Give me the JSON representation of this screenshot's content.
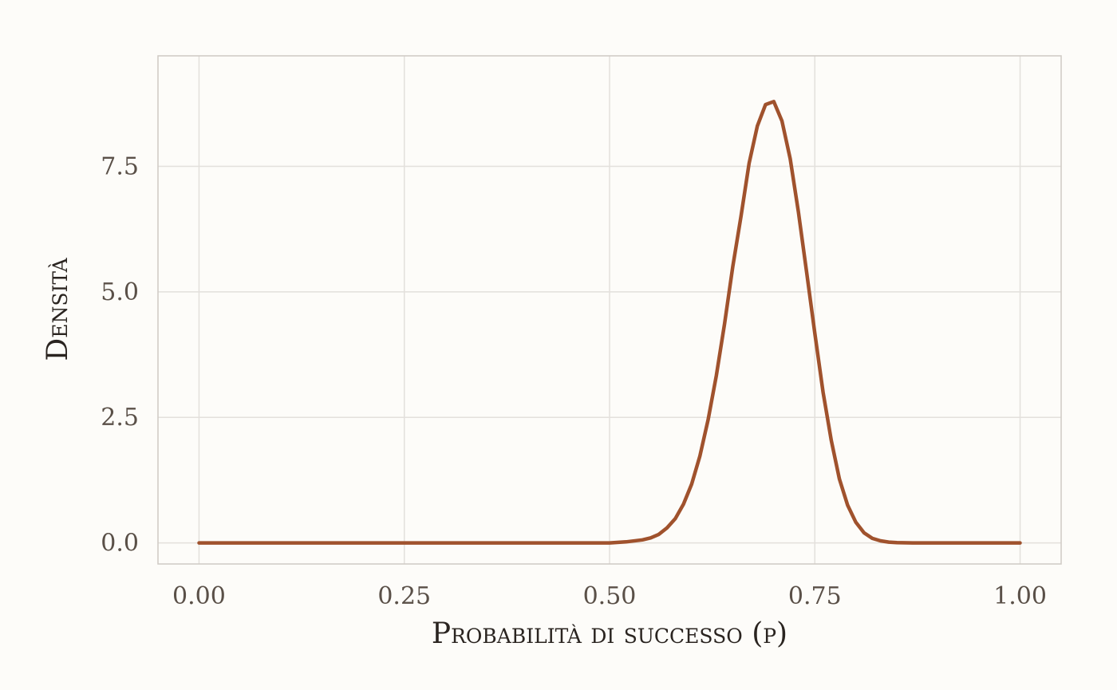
{
  "chart_data": {
    "type": "line",
    "title": "",
    "xlabel": "Probabilità di successo (p)",
    "ylabel": "Densità",
    "xlim": [
      -0.05,
      1.05
    ],
    "ylim": [
      -0.42,
      9.7
    ],
    "x_ticks": [
      0.0,
      0.25,
      0.5,
      0.75,
      1.0
    ],
    "x_tick_labels": [
      "0.00",
      "0.25",
      "0.50",
      "0.75",
      "1.00"
    ],
    "y_ticks": [
      0.0,
      2.5,
      5.0,
      7.5
    ],
    "y_tick_labels": [
      "0.0",
      "2.5",
      "5.0",
      "7.5"
    ],
    "grid": true,
    "series": [
      {
        "color": "#a0522d",
        "x": [
          0.0,
          0.5,
          0.52,
          0.54,
          0.55,
          0.56,
          0.57,
          0.58,
          0.59,
          0.6,
          0.61,
          0.62,
          0.63,
          0.64,
          0.65,
          0.66,
          0.67,
          0.68,
          0.69,
          0.7,
          0.71,
          0.72,
          0.73,
          0.74,
          0.75,
          0.76,
          0.77,
          0.78,
          0.79,
          0.8,
          0.81,
          0.82,
          0.83,
          0.84,
          0.85,
          0.87,
          1.0
        ],
        "y": [
          0.0,
          0.0,
          0.02,
          0.06,
          0.1,
          0.17,
          0.3,
          0.48,
          0.77,
          1.17,
          1.73,
          2.45,
          3.33,
          4.36,
          5.5,
          6.5,
          7.56,
          8.3,
          8.73,
          8.79,
          8.4,
          7.65,
          6.59,
          5.39,
          4.17,
          3.0,
          2.04,
          1.27,
          0.75,
          0.41,
          0.2,
          0.09,
          0.04,
          0.015,
          0.005,
          0.0,
          0.0
        ]
      }
    ]
  }
}
